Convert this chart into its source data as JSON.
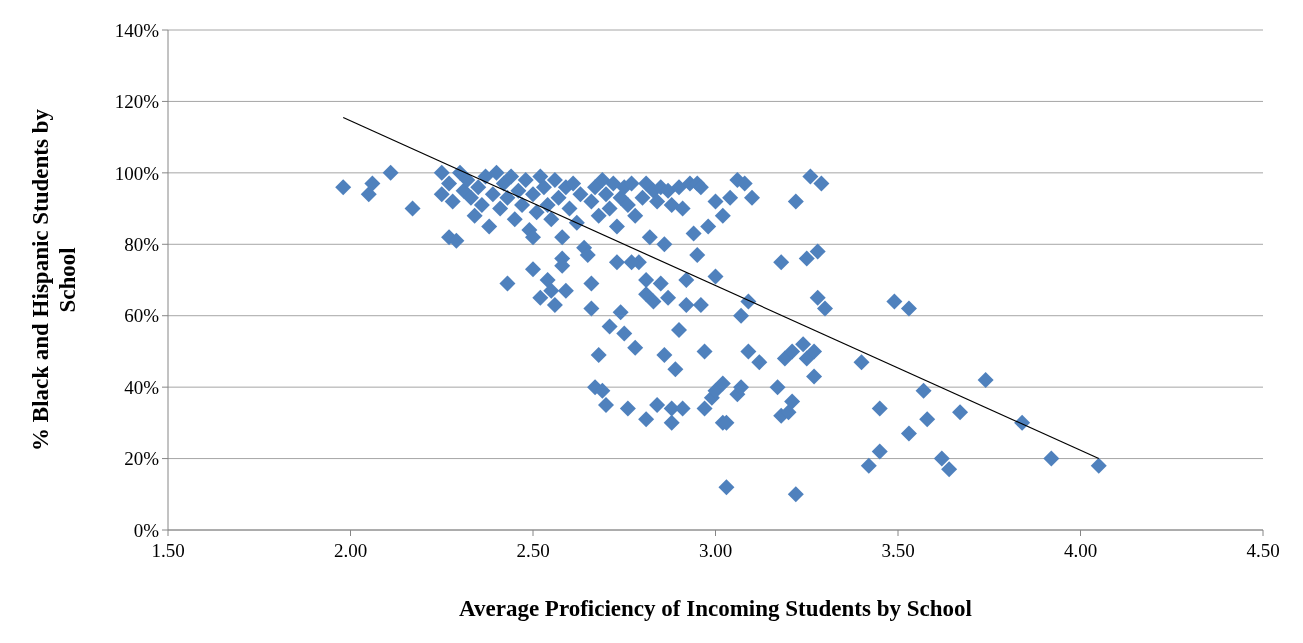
{
  "chart_data": {
    "type": "scatter",
    "xlabel": "Average Proficiency of Incoming Students by School",
    "ylabel": "% Black and Hispanic Students by School",
    "xlim": [
      1.5,
      4.5
    ],
    "ylim": [
      0,
      140
    ],
    "xticks": [
      {
        "value": 1.5,
        "label": "1.50"
      },
      {
        "value": 2,
        "label": "2.00"
      },
      {
        "value": 2.5,
        "label": "2.50"
      },
      {
        "value": 3,
        "label": "3.00"
      },
      {
        "value": 3.5,
        "label": "3.50"
      },
      {
        "value": 4,
        "label": "4.00"
      },
      {
        "value": 4.5,
        "label": "4.50"
      }
    ],
    "yticks": [
      {
        "value": 0,
        "label": "0%"
      },
      {
        "value": 20,
        "label": "20%"
      },
      {
        "value": 40,
        "label": "40%"
      },
      {
        "value": 60,
        "label": "60%"
      },
      {
        "value": 80,
        "label": "80%"
      },
      {
        "value": 100,
        "label": "100%"
      },
      {
        "value": 120,
        "label": "120%"
      },
      {
        "value": 140,
        "label": "140%"
      }
    ],
    "grid": "y",
    "marker": "diamond",
    "series": [
      {
        "color": "#4f81bd",
        "x": [
          1.98,
          2.05,
          2.06,
          2.11,
          2.17,
          2.27,
          2.29,
          2.25,
          2.25,
          2.27,
          2.28,
          2.3,
          2.31,
          2.32,
          2.33,
          2.34,
          2.35,
          2.36,
          2.37,
          2.38,
          2.39,
          2.4,
          2.41,
          2.42,
          2.43,
          2.44,
          2.45,
          2.46,
          2.47,
          2.48,
          2.49,
          2.5,
          2.5,
          2.51,
          2.52,
          2.53,
          2.54,
          2.55,
          2.56,
          2.57,
          2.58,
          2.59,
          2.6,
          2.61,
          2.62,
          2.63,
          2.64,
          2.65,
          2.66,
          2.67,
          2.68,
          2.69,
          2.7,
          2.71,
          2.72,
          2.73,
          2.74,
          2.75,
          2.76,
          2.77,
          2.78,
          2.79,
          2.8,
          2.81,
          2.82,
          2.83,
          2.84,
          2.85,
          2.86,
          2.87,
          2.88,
          2.9,
          2.91,
          2.93,
          2.95,
          2.96,
          2.98,
          3.0,
          3.02,
          3.04,
          3.06,
          3.08,
          3.1,
          3.22,
          3.26,
          3.29,
          2.43,
          2.5,
          2.52,
          2.54,
          2.55,
          2.56,
          2.58,
          2.59,
          2.58,
          2.66,
          2.66,
          2.71,
          2.73,
          2.74,
          2.75,
          2.77,
          2.78,
          2.81,
          2.81,
          2.83,
          2.85,
          2.87,
          2.86,
          2.89,
          2.9,
          2.92,
          2.92,
          2.96,
          2.97,
          2.95,
          2.94,
          3.0,
          3.07,
          3.09,
          3.09,
          3.12,
          3.18,
          3.19,
          3.21,
          3.24,
          3.25,
          3.25,
          3.27,
          3.27,
          3.28,
          3.28,
          3.3,
          3.4,
          3.49,
          3.53,
          3.57,
          3.74,
          2.67,
          2.68,
          2.69,
          2.7,
          2.76,
          2.81,
          2.84,
          2.88,
          2.88,
          2.91,
          2.97,
          2.99,
          3.0,
          3.02,
          3.02,
          3.03,
          3.06,
          3.07,
          3.03,
          3.17,
          3.18,
          3.2,
          3.21,
          3.22,
          3.42,
          3.45,
          3.45,
          3.53,
          3.58,
          3.62,
          3.64,
          3.67,
          3.84,
          3.92,
          4.05
        ],
        "values": [
          96,
          94,
          97,
          100,
          90,
          82,
          81,
          100,
          94,
          97,
          92,
          100,
          95,
          98,
          93,
          88,
          96,
          91,
          99,
          85,
          94,
          100,
          90,
          97,
          93,
          99,
          87,
          95,
          91,
          98,
          84,
          82,
          94,
          89,
          99,
          96,
          91,
          87,
          98,
          93,
          82,
          96,
          90,
          97,
          86,
          94,
          79,
          77,
          92,
          96,
          88,
          98,
          94,
          90,
          97,
          85,
          93,
          96,
          91,
          97,
          88,
          75,
          93,
          97,
          82,
          95,
          92,
          96,
          80,
          95,
          91,
          96,
          90,
          97,
          97,
          96,
          85,
          92,
          88,
          93,
          98,
          97,
          93,
          92,
          99,
          97,
          69,
          73,
          65,
          70,
          67,
          63,
          76,
          67,
          74,
          69,
          62,
          57,
          75,
          61,
          55,
          75,
          51,
          70,
          66,
          64,
          69,
          65,
          49,
          45,
          56,
          63,
          70,
          63,
          50,
          77,
          83,
          71,
          60,
          64,
          50,
          47,
          75,
          48,
          50,
          52,
          48,
          76,
          50,
          43,
          78,
          65,
          62,
          47,
          64,
          62,
          39,
          42,
          40,
          49,
          39,
          35,
          34,
          31,
          35,
          30,
          34,
          34,
          34,
          37,
          39,
          41,
          30,
          30,
          38,
          40,
          12,
          40,
          32,
          33,
          36,
          10,
          18,
          34,
          22,
          27,
          31,
          20,
          17,
          33,
          30,
          20,
          18
        ]
      },
      {
        "type": "line",
        "color": "#000000",
        "marker": "none",
        "x": [
          1.98,
          4.05
        ],
        "values": [
          115.5,
          20
        ]
      }
    ]
  }
}
